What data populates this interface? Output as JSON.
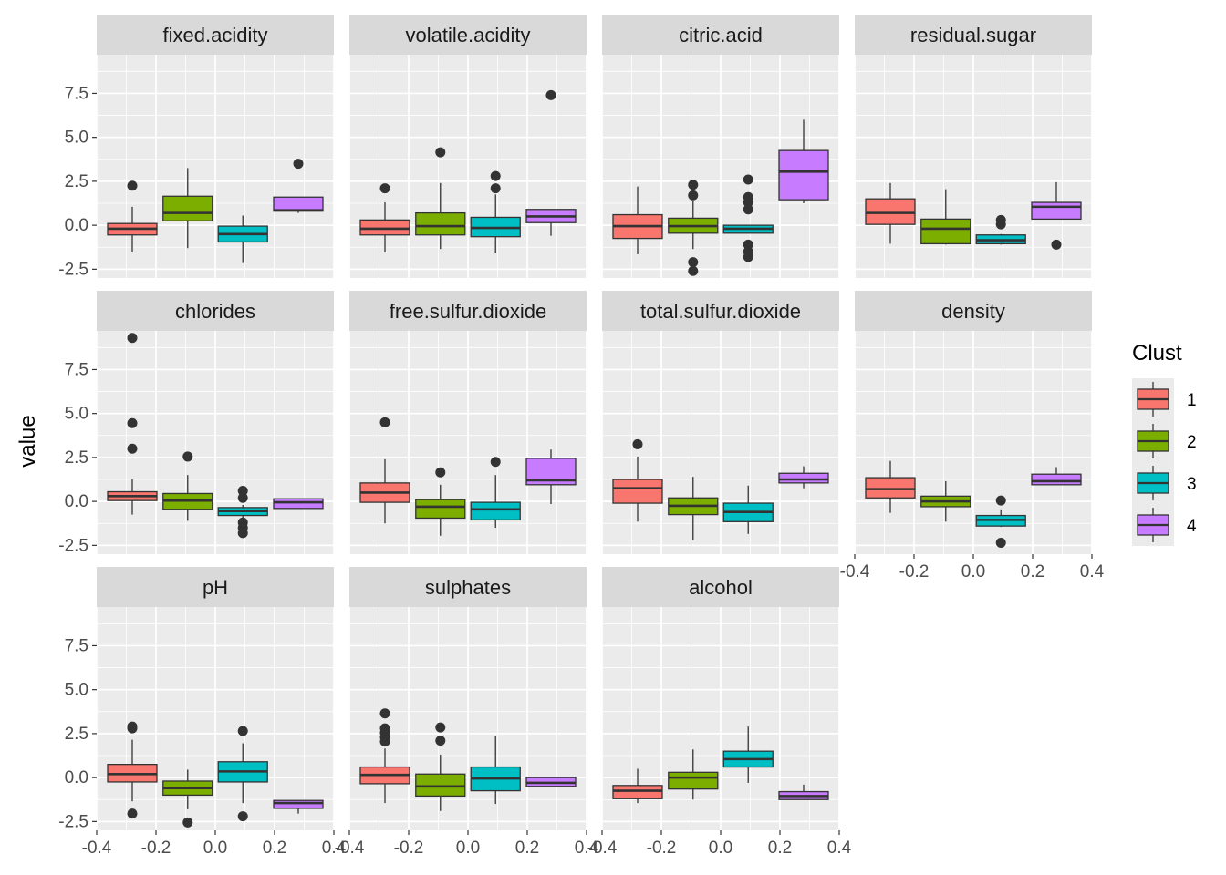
{
  "chart_data": {
    "type": "boxplot",
    "facet_by": "variable",
    "x": {
      "ticks": [
        -0.4,
        -0.2,
        0.0,
        0.2,
        0.4
      ],
      "tick_labels": [
        "-0.4",
        "-0.2",
        "0.0",
        "0.2",
        "0.4"
      ],
      "lim": [
        -0.4,
        0.4
      ],
      "label": ""
    },
    "y": {
      "label": "value",
      "ticks": [
        -2.5,
        0.0,
        2.5,
        5.0,
        7.5
      ],
      "tick_labels": [
        "-2.5",
        "0.0",
        "2.5",
        "5.0",
        "7.5"
      ],
      "lim": [
        -3.0,
        9.7
      ]
    },
    "grid": true,
    "legend": {
      "title": "Clust",
      "position": "right",
      "items": [
        {
          "label": "1",
          "color": "#F8766D"
        },
        {
          "label": "2",
          "color": "#7CAE00"
        },
        {
          "label": "3",
          "color": "#00BFC4"
        },
        {
          "label": "4",
          "color": "#C77CFF"
        }
      ]
    },
    "box_x_positions": [
      -0.28,
      -0.093,
      0.093,
      0.28
    ],
    "facets": [
      {
        "label": "fixed.acidity",
        "boxes": [
          {
            "q1": -0.55,
            "median": -0.2,
            "q3": 0.1,
            "low": -1.55,
            "high": 1.05,
            "outliers": [
              2.25
            ]
          },
          {
            "q1": 0.25,
            "median": 0.7,
            "q3": 1.65,
            "low": -1.3,
            "high": 3.25,
            "outliers": []
          },
          {
            "q1": -0.95,
            "median": -0.5,
            "q3": -0.05,
            "low": -2.15,
            "high": 0.55,
            "outliers": []
          },
          {
            "q1": 0.8,
            "median": 0.85,
            "q3": 1.6,
            "low": 0.7,
            "high": 1.6,
            "outliers": [
              3.5
            ]
          }
        ]
      },
      {
        "label": "volatile.acidity",
        "boxes": [
          {
            "q1": -0.55,
            "median": -0.2,
            "q3": 0.3,
            "low": -1.55,
            "high": 1.3,
            "outliers": [
              2.1
            ]
          },
          {
            "q1": -0.55,
            "median": -0.05,
            "q3": 0.7,
            "low": -1.35,
            "high": 2.4,
            "outliers": [
              4.15
            ]
          },
          {
            "q1": -0.65,
            "median": -0.15,
            "q3": 0.45,
            "low": -1.6,
            "high": 1.75,
            "outliers": [
              2.1,
              2.8
            ]
          },
          {
            "q1": 0.15,
            "median": 0.5,
            "q3": 0.9,
            "low": -0.6,
            "high": 0.9,
            "outliers": [
              7.4
            ]
          }
        ]
      },
      {
        "label": "citric.acid",
        "boxes": [
          {
            "q1": -0.75,
            "median": -0.05,
            "q3": 0.6,
            "low": -1.65,
            "high": 2.2,
            "outliers": []
          },
          {
            "q1": -0.45,
            "median": -0.05,
            "q3": 0.4,
            "low": -1.35,
            "high": 1.4,
            "outliers": [
              -2.6,
              -2.1,
              1.7,
              2.3
            ]
          },
          {
            "q1": -0.45,
            "median": -0.2,
            "q3": 0.0,
            "low": -0.45,
            "high": 0.0,
            "outliers": [
              -1.8,
              -1.5,
              -1.1,
              0.9,
              1.3,
              1.6,
              2.6
            ]
          },
          {
            "q1": 1.45,
            "median": 3.05,
            "q3": 4.25,
            "low": 1.25,
            "high": 6.0,
            "outliers": []
          }
        ]
      },
      {
        "label": "residual.sugar",
        "boxes": [
          {
            "q1": 0.05,
            "median": 0.7,
            "q3": 1.5,
            "low": -1.05,
            "high": 2.4,
            "outliers": []
          },
          {
            "q1": -1.05,
            "median": -0.2,
            "q3": 0.35,
            "low": -1.1,
            "high": 2.05,
            "outliers": []
          },
          {
            "q1": -1.05,
            "median": -0.85,
            "q3": -0.55,
            "low": -1.1,
            "high": -0.5,
            "outliers": [
              0.05,
              0.3
            ]
          },
          {
            "q1": 0.35,
            "median": 1.05,
            "q3": 1.3,
            "low": 0.35,
            "high": 2.45,
            "outliers": [
              -1.1
            ]
          }
        ]
      },
      {
        "label": "chlorides",
        "boxes": [
          {
            "q1": 0.05,
            "median": 0.3,
            "q3": 0.55,
            "low": -0.75,
            "high": 1.25,
            "outliers": [
              3.0,
              4.45,
              9.3
            ]
          },
          {
            "q1": -0.45,
            "median": 0.05,
            "q3": 0.45,
            "low": -1.1,
            "high": 1.5,
            "outliers": [
              2.55
            ]
          },
          {
            "q1": -0.8,
            "median": -0.55,
            "q3": -0.35,
            "low": -1.0,
            "high": -0.2,
            "outliers": [
              -1.8,
              -1.5,
              -1.2,
              0.2,
              0.6
            ]
          },
          {
            "q1": -0.4,
            "median": -0.05,
            "q3": 0.15,
            "low": -0.4,
            "high": 0.15,
            "outliers": []
          }
        ]
      },
      {
        "label": "free.sulfur.dioxide",
        "boxes": [
          {
            "q1": -0.05,
            "median": 0.5,
            "q3": 1.05,
            "low": -1.25,
            "high": 2.4,
            "outliers": [
              4.5
            ]
          },
          {
            "q1": -0.95,
            "median": -0.3,
            "q3": 0.1,
            "low": -1.95,
            "high": 0.95,
            "outliers": [
              1.65
            ]
          },
          {
            "q1": -1.05,
            "median": -0.45,
            "q3": -0.05,
            "low": -1.5,
            "high": 1.5,
            "outliers": [
              2.25
            ]
          },
          {
            "q1": 0.95,
            "median": 1.2,
            "q3": 2.45,
            "low": -0.15,
            "high": 2.95,
            "outliers": []
          }
        ]
      },
      {
        "label": "total.sulfur.dioxide",
        "boxes": [
          {
            "q1": -0.1,
            "median": 0.75,
            "q3": 1.25,
            "low": -1.15,
            "high": 2.55,
            "outliers": [
              3.25
            ]
          },
          {
            "q1": -0.75,
            "median": -0.25,
            "q3": 0.2,
            "low": -2.2,
            "high": 1.4,
            "outliers": []
          },
          {
            "q1": -1.15,
            "median": -0.6,
            "q3": -0.1,
            "low": -1.85,
            "high": 0.9,
            "outliers": []
          },
          {
            "q1": 1.05,
            "median": 1.25,
            "q3": 1.6,
            "low": 0.75,
            "high": 2.0,
            "outliers": []
          }
        ]
      },
      {
        "label": "density",
        "boxes": [
          {
            "q1": 0.2,
            "median": 0.7,
            "q3": 1.35,
            "low": -0.65,
            "high": 2.3,
            "outliers": []
          },
          {
            "q1": -0.3,
            "median": 0.0,
            "q3": 0.3,
            "low": -1.15,
            "high": 1.15,
            "outliers": []
          },
          {
            "q1": -1.4,
            "median": -1.05,
            "q3": -0.8,
            "low": -1.45,
            "high": -0.45,
            "outliers": [
              -2.35,
              0.05
            ]
          },
          {
            "q1": 0.95,
            "median": 1.15,
            "q3": 1.55,
            "low": 0.95,
            "high": 1.95,
            "outliers": []
          }
        ]
      },
      {
        "label": "pH",
        "boxes": [
          {
            "q1": -0.25,
            "median": 0.2,
            "q3": 0.75,
            "low": -1.35,
            "high": 2.15,
            "outliers": [
              -2.05,
              2.8,
              2.9
            ]
          },
          {
            "q1": -1.0,
            "median": -0.6,
            "q3": -0.2,
            "low": -1.8,
            "high": 0.45,
            "outliers": [
              -2.55
            ]
          },
          {
            "q1": -0.25,
            "median": 0.35,
            "q3": 0.9,
            "low": -1.45,
            "high": 1.95,
            "outliers": [
              -2.2,
              2.65
            ]
          },
          {
            "q1": -1.75,
            "median": -1.45,
            "q3": -1.3,
            "low": -2.05,
            "high": -1.3,
            "outliers": []
          }
        ]
      },
      {
        "label": "sulphates",
        "boxes": [
          {
            "q1": -0.35,
            "median": 0.15,
            "q3": 0.6,
            "low": -1.45,
            "high": 1.65,
            "outliers": [
              2.05,
              2.3,
              2.55,
              2.8,
              3.65
            ]
          },
          {
            "q1": -1.05,
            "median": -0.5,
            "q3": 0.2,
            "low": -1.9,
            "high": 1.3,
            "outliers": [
              2.1,
              2.85
            ]
          },
          {
            "q1": -0.75,
            "median": -0.05,
            "q3": 0.6,
            "low": -1.5,
            "high": 2.35,
            "outliers": []
          },
          {
            "q1": -0.5,
            "median": -0.3,
            "q3": 0.0,
            "low": -0.5,
            "high": 0.0,
            "outliers": []
          }
        ]
      },
      {
        "label": "alcohol",
        "boxes": [
          {
            "q1": -1.2,
            "median": -0.75,
            "q3": -0.45,
            "low": -1.45,
            "high": 0.5,
            "outliers": []
          },
          {
            "q1": -0.65,
            "median": 0.0,
            "q3": 0.3,
            "low": -1.25,
            "high": 1.6,
            "outliers": []
          },
          {
            "q1": 0.6,
            "median": 1.05,
            "q3": 1.5,
            "low": -0.3,
            "high": 2.9,
            "outliers": []
          },
          {
            "q1": -1.25,
            "median": -1.05,
            "q3": -0.8,
            "low": -1.25,
            "high": -0.4,
            "outliers": []
          }
        ]
      }
    ]
  }
}
